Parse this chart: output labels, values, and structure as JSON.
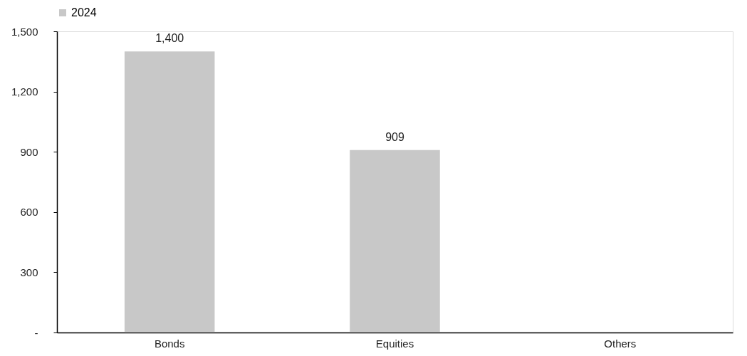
{
  "chart_data": {
    "type": "bar",
    "categories": [
      "Bonds",
      "Equities",
      "Others"
    ],
    "series": [
      {
        "name": "2024",
        "color": "#c8c8c8",
        "values": [
          1400,
          909,
          0
        ],
        "value_labels": [
          "1,400",
          "909",
          null
        ]
      }
    ],
    "ylim": [
      0,
      1500
    ],
    "yticks": [
      {
        "value": 0,
        "label": "-"
      },
      {
        "value": 300,
        "label": "300"
      },
      {
        "value": 600,
        "label": "600"
      },
      {
        "value": 900,
        "label": "900"
      },
      {
        "value": 1200,
        "label": "1,200"
      },
      {
        "value": 1500,
        "label": "1,500"
      }
    ],
    "grid": false,
    "legend": "top"
  }
}
